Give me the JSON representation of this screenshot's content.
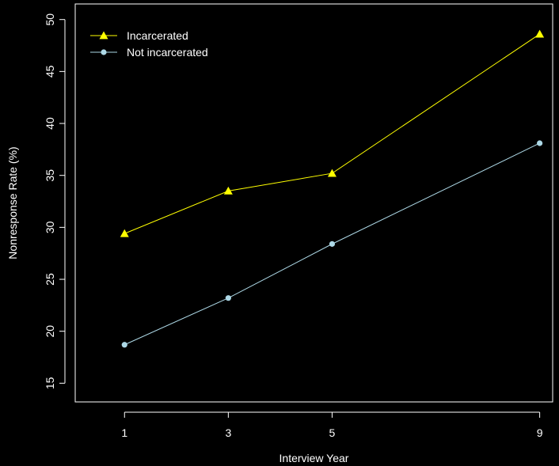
{
  "chart_data": {
    "type": "line",
    "title": "",
    "xlabel": "Interview Year",
    "ylabel": "Nonresponse Rate (%)",
    "x": [
      1,
      3,
      5,
      9
    ],
    "x_tick_labels": [
      "1",
      "3",
      "5",
      "9"
    ],
    "xlim": [
      0.05,
      9.25
    ],
    "ylim": [
      13.2,
      51.5
    ],
    "y_ticks": [
      15,
      20,
      25,
      30,
      35,
      40,
      45,
      50
    ],
    "y_tick_labels": [
      "15",
      "20",
      "25",
      "30",
      "35",
      "40",
      "45",
      "50"
    ],
    "grid": false,
    "legend_position": "top-left",
    "background_color": "#000000",
    "axis_color": "#ffffff",
    "series": [
      {
        "name": "Incarcerated",
        "values": [
          29.4,
          33.5,
          35.2,
          48.6
        ],
        "color": "#ffff00",
        "marker": "triangle"
      },
      {
        "name": "Not incarcerated",
        "values": [
          18.7,
          23.2,
          28.4,
          38.1
        ],
        "color": "#add8e6",
        "marker": "circle"
      }
    ]
  }
}
